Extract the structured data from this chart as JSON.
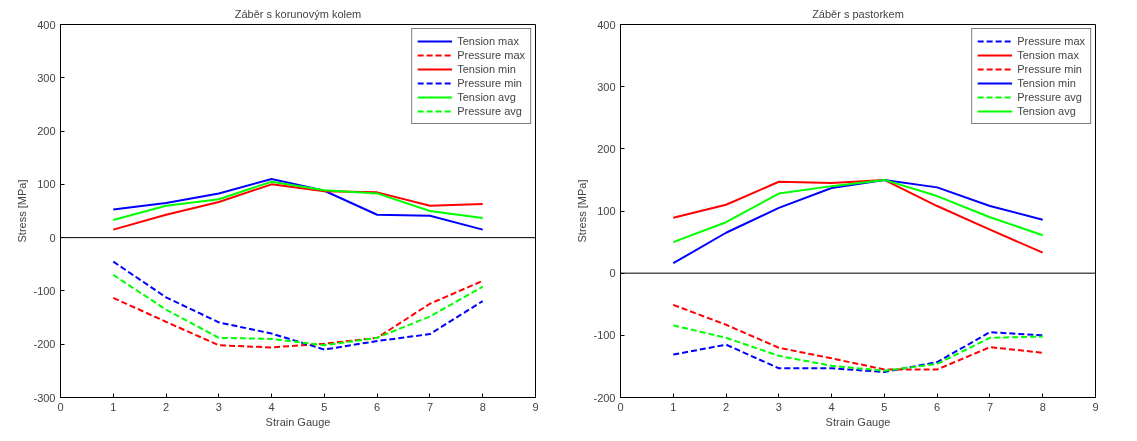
{
  "chart_data": [
    {
      "type": "line",
      "title": "Záběr s korunovým kolem",
      "xlabel": "Strain Gauge",
      "ylabel": "Stress [MPa]",
      "x": [
        1,
        2,
        3,
        4,
        5,
        6,
        7,
        8
      ],
      "xlim": [
        0,
        9
      ],
      "xticks": [
        0,
        1,
        2,
        3,
        4,
        5,
        6,
        7,
        8,
        9
      ],
      "ylim": [
        -300,
        400
      ],
      "yticks": [
        -300,
        -200,
        -100,
        0,
        100,
        200,
        300,
        400
      ],
      "grid": false,
      "legend": "top right",
      "marker": "none",
      "ref_lines": [
        {
          "axis": "y",
          "value": 0,
          "color": "#000000"
        }
      ],
      "series": [
        {
          "name": "Tension max",
          "color": "#0000ff",
          "line_style": "solid",
          "values": [
            53,
            65,
            83,
            110,
            88,
            43,
            41,
            15
          ]
        },
        {
          "name": "Pressure max",
          "color": "#ff0000",
          "line_style": "dashed",
          "values": [
            -113,
            -158,
            -202,
            -206,
            -199,
            -188,
            -124,
            -81
          ]
        },
        {
          "name": "Tension min",
          "color": "#ff0000",
          "line_style": "solid",
          "values": [
            15,
            43,
            67,
            100,
            87,
            85,
            60,
            63
          ]
        },
        {
          "name": "Pressure min",
          "color": "#0000ff",
          "line_style": "dashed",
          "values": [
            -45,
            -112,
            -159,
            -180,
            -210,
            -194,
            -181,
            -119
          ]
        },
        {
          "name": "Tension avg",
          "color": "#00ff00",
          "line_style": "solid",
          "values": [
            33,
            60,
            72,
            105,
            89,
            83,
            50,
            37
          ]
        },
        {
          "name": "Pressure avg",
          "color": "#00ff00",
          "line_style": "dashed",
          "values": [
            -70,
            -135,
            -188,
            -190,
            -202,
            -188,
            -148,
            -92
          ]
        }
      ]
    },
    {
      "type": "line",
      "title": "Záběr s pastorkem",
      "xlabel": "Strain Gauge",
      "ylabel": "Stress [MPa]",
      "x": [
        1,
        2,
        3,
        4,
        5,
        6,
        7,
        8
      ],
      "xlim": [
        0,
        9
      ],
      "xticks": [
        0,
        1,
        2,
        3,
        4,
        5,
        6,
        7,
        8,
        9
      ],
      "ylim": [
        -200,
        400
      ],
      "yticks": [
        -200,
        -100,
        0,
        100,
        200,
        300,
        400
      ],
      "grid": false,
      "legend": "top right",
      "marker": "none",
      "ref_lines": [
        {
          "axis": "y",
          "value": 0,
          "color": "#000000"
        }
      ],
      "series": [
        {
          "name": "Pressure max",
          "color": "#0000ff",
          "line_style": "dashed",
          "values": [
            -131,
            -115,
            -153,
            -153,
            -159,
            -143,
            -95,
            -100
          ]
        },
        {
          "name": "Tension max",
          "color": "#ff0000",
          "line_style": "solid",
          "values": [
            89,
            110,
            147,
            145,
            150,
            108,
            70,
            33
          ]
        },
        {
          "name": "Pressure min",
          "color": "#ff0000",
          "line_style": "dashed",
          "values": [
            -51,
            -83,
            -120,
            -137,
            -155,
            -155,
            -119,
            -128
          ]
        },
        {
          "name": "Tension min",
          "color": "#0000ff",
          "line_style": "solid",
          "values": [
            16,
            65,
            105,
            137,
            150,
            138,
            108,
            86
          ]
        },
        {
          "name": "Pressure avg",
          "color": "#00ff00",
          "line_style": "dashed",
          "values": [
            -84,
            -104,
            -133,
            -149,
            -157,
            -146,
            -104,
            -102
          ]
        },
        {
          "name": "Tension avg",
          "color": "#00ff00",
          "line_style": "solid",
          "values": [
            50,
            82,
            128,
            140,
            150,
            124,
            90,
            61
          ]
        }
      ]
    }
  ]
}
